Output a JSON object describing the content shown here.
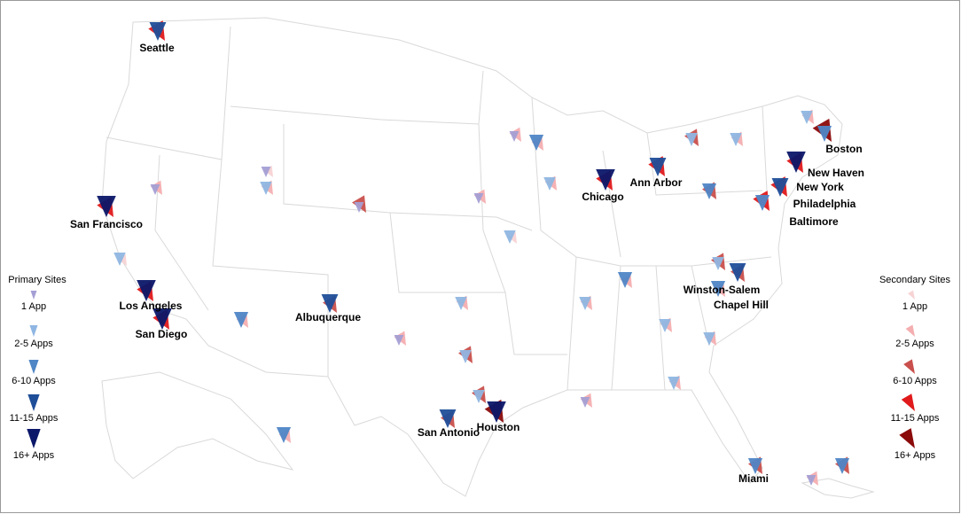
{
  "map": {
    "cities": [
      "Seattle",
      "San Francisco",
      "Los Angeles",
      "San Diego",
      "Albuquerque",
      "San Antonio",
      "Houston",
      "Chicago",
      "Ann Arbor",
      "Boston",
      "New Haven",
      "New York",
      "Philadelphia",
      "Baltimore",
      "Winston-Salem",
      "Chapel Hill",
      "Miami"
    ],
    "legend_primary": {
      "title": "Primary Sites",
      "items": [
        "1 App",
        "2-5 Apps",
        "6-10 Apps",
        "11-15 Apps",
        "16+ Apps"
      ],
      "colors": [
        "#a49fd4",
        "#8fb6e2",
        "#4f86c6",
        "#1f4e99",
        "#0b1769"
      ]
    },
    "legend_secondary": {
      "title": "Secondary Sites",
      "items": [
        "1 App",
        "2-5 Apps",
        "6-10 Apps",
        "11-15 Apps",
        "16+ Apps"
      ],
      "colors": [
        "#f7d3d4",
        "#f4aeb0",
        "#c9504c",
        "#e0191b",
        "#8b0a0a"
      ]
    }
  }
}
